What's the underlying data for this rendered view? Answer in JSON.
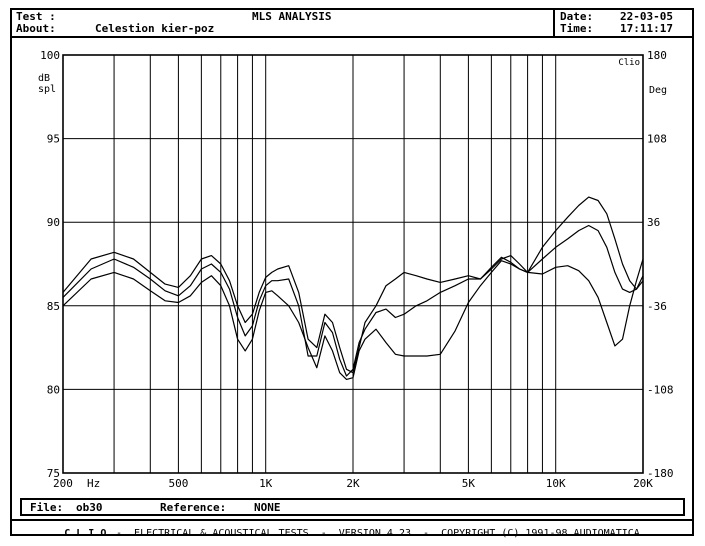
{
  "header": {
    "test_label": "Test :",
    "title": "MLS ANALYSIS",
    "date_label": "Date:",
    "date_value": "22-03-05",
    "about_label": "About:",
    "about_value": "Celestion kier-poz",
    "time_label": "Time:",
    "time_value": "17:11:17"
  },
  "file_row": {
    "file_label": "File:",
    "file_value": "ob30",
    "reference_label": "Reference:",
    "reference_value": "NONE"
  },
  "footer": {
    "clio": "C L I O",
    "text": "-  ELECTRICAL & ACOUSTICAL TESTS  -  VERSION 4.23  -  COPYRIGHT (C) 1991-98 AUDIOMATICA"
  },
  "chart_data": {
    "type": "line",
    "xscale": "log",
    "xlim": [
      200,
      20000
    ],
    "ylim": [
      75,
      100
    ],
    "y2lim": [
      -180,
      180
    ],
    "grid": true,
    "xlabel_unit": "Hz",
    "ylabel": "dB spl",
    "y2label": "Deg",
    "corner_label": "Clio",
    "x_tick_labels": [
      {
        "value": 200,
        "label": "200"
      },
      {
        "value": 500,
        "label": "500"
      },
      {
        "value": 1000,
        "label": "1K"
      },
      {
        "value": 2000,
        "label": "2K"
      },
      {
        "value": 5000,
        "label": "5K"
      },
      {
        "value": 10000,
        "label": "10K"
      },
      {
        "value": 20000,
        "label": "20K"
      }
    ],
    "y_ticks": [
      {
        "value": 100,
        "label": "100"
      },
      {
        "value": 95,
        "label": "95"
      },
      {
        "value": 90,
        "label": "90"
      },
      {
        "value": 85,
        "label": "85"
      },
      {
        "value": 80,
        "label": "80"
      },
      {
        "value": 75,
        "label": "75"
      }
    ],
    "y2_ticks": [
      {
        "value": 180,
        "label": "180"
      },
      {
        "value": 108,
        "label": "108"
      },
      {
        "value": 36,
        "label": "36"
      },
      {
        "value": -36,
        "label": "-36"
      },
      {
        "value": -108,
        "label": "-108"
      },
      {
        "value": -180,
        "label": "-180"
      }
    ],
    "x_gridlines": [
      200,
      300,
      400,
      500,
      600,
      700,
      800,
      900,
      1000,
      2000,
      3000,
      4000,
      5000,
      6000,
      7000,
      8000,
      9000,
      10000,
      20000
    ],
    "series": [
      {
        "x": [
          200,
          250,
          300,
          350,
          400,
          450,
          500,
          550,
          600,
          650,
          700,
          750,
          800,
          850,
          900,
          950,
          1000,
          1050,
          1100,
          1200,
          1300,
          1400,
          1500,
          1600,
          1700,
          1800,
          1900,
          2000,
          2100,
          2200,
          2400,
          2600,
          2800,
          3000,
          3300,
          3600,
          4000,
          4500,
          5000,
          5500,
          6000,
          6500,
          7000,
          7500,
          8000,
          9000,
          10000,
          11000,
          12000,
          13000,
          14000,
          15000,
          16000,
          17000,
          18000,
          19000,
          20000
        ],
        "values": [
          85.8,
          87.8,
          88.2,
          87.8,
          87.0,
          86.3,
          86.1,
          86.8,
          87.8,
          88.0,
          87.5,
          86.5,
          85.0,
          84.0,
          84.5,
          85.8,
          86.7,
          87.0,
          87.2,
          87.4,
          85.8,
          83.0,
          82.5,
          84.5,
          84.0,
          82.5,
          81.2,
          81.0,
          82.5,
          84.0,
          85.0,
          86.2,
          86.6,
          87.0,
          86.8,
          86.6,
          86.4,
          86.6,
          86.8,
          86.6,
          87.2,
          87.8,
          88.0,
          87.5,
          87.0,
          88.5,
          89.5,
          90.3,
          91.0,
          91.5,
          91.3,
          90.5,
          89.0,
          87.5,
          86.5,
          86.0,
          86.5
        ]
      },
      {
        "x": [
          200,
          250,
          300,
          350,
          400,
          450,
          500,
          550,
          600,
          650,
          700,
          750,
          800,
          850,
          900,
          950,
          1000,
          1050,
          1100,
          1200,
          1300,
          1400,
          1500,
          1600,
          1700,
          1800,
          1900,
          2000,
          2100,
          2200,
          2400,
          2600,
          2800,
          3000,
          3300,
          3600,
          4000,
          4500,
          5000,
          5500,
          6000,
          6500,
          7000,
          7500,
          8000,
          9000,
          10000,
          11000,
          12000,
          13000,
          14000,
          15000,
          16000,
          17000,
          18000,
          19000,
          20000
        ],
        "values": [
          85.5,
          87.2,
          87.8,
          87.3,
          86.6,
          85.9,
          85.6,
          86.2,
          87.2,
          87.5,
          87.0,
          86.0,
          84.3,
          83.2,
          83.8,
          85.3,
          86.2,
          86.5,
          86.5,
          86.6,
          85.0,
          82.0,
          82.0,
          84.0,
          83.4,
          81.8,
          80.8,
          81.2,
          82.8,
          83.6,
          84.6,
          84.8,
          84.3,
          84.5,
          85.0,
          85.3,
          85.8,
          86.2,
          86.6,
          86.6,
          87.3,
          87.9,
          87.6,
          87.2,
          87.0,
          87.8,
          88.5,
          89.0,
          89.5,
          89.8,
          89.5,
          88.5,
          87.0,
          86.0,
          85.8,
          86.0,
          86.8
        ]
      },
      {
        "x": [
          200,
          250,
          300,
          350,
          400,
          450,
          500,
          550,
          600,
          650,
          700,
          750,
          800,
          850,
          900,
          950,
          1000,
          1050,
          1100,
          1200,
          1300,
          1400,
          1500,
          1600,
          1700,
          1800,
          1900,
          2000,
          2100,
          2200,
          2400,
          2600,
          2800,
          3000,
          3300,
          3600,
          4000,
          4500,
          5000,
          5500,
          6000,
          6500,
          7000,
          7500,
          8000,
          9000,
          10000,
          11000,
          12000,
          13000,
          14000,
          15000,
          16000,
          17000,
          18000,
          19000,
          20000
        ],
        "values": [
          85.0,
          86.6,
          87.0,
          86.6,
          85.9,
          85.3,
          85.2,
          85.6,
          86.4,
          86.8,
          86.2,
          85.0,
          83.0,
          82.3,
          83.0,
          84.7,
          85.8,
          85.9,
          85.6,
          85.0,
          84.0,
          82.5,
          81.3,
          83.2,
          82.3,
          81.0,
          80.6,
          80.7,
          82.3,
          83.0,
          83.6,
          82.8,
          82.1,
          82.0,
          82.0,
          82.0,
          82.1,
          83.5,
          85.2,
          86.2,
          87.0,
          87.7,
          87.5,
          87.2,
          87.0,
          86.9,
          87.3,
          87.4,
          87.1,
          86.5,
          85.5,
          84.0,
          82.6,
          83.0,
          85.0,
          86.5,
          87.8
        ]
      }
    ]
  }
}
